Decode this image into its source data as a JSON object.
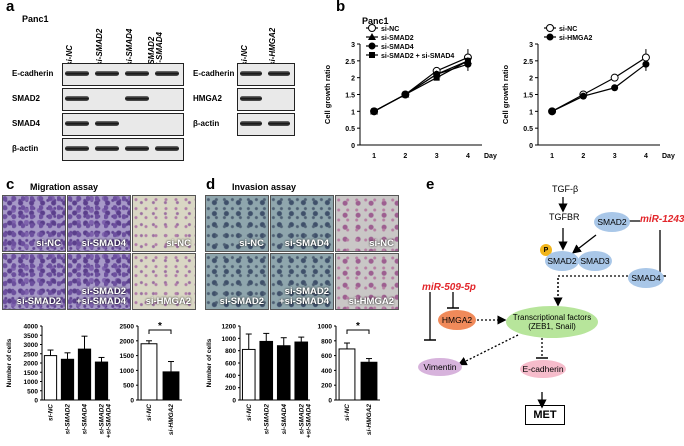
{
  "panels": {
    "a": "a",
    "b": "b",
    "c": "c",
    "d": "d",
    "e": "e"
  },
  "a": {
    "cell_line": "Panc1",
    "blot1": {
      "lanes": [
        "si-NC",
        "si-SMAD2",
        "si-SMAD4",
        "si-SMAD2\n+si-SMAD4"
      ],
      "rows": [
        "E-cadherin",
        "SMAD2",
        "SMAD4",
        "β-actin"
      ],
      "bands": [
        [
          1,
          1,
          1,
          1
        ],
        [
          1,
          0,
          1,
          0
        ],
        [
          1,
          1,
          0,
          0
        ],
        [
          1,
          1,
          1,
          1
        ]
      ]
    },
    "blot2": {
      "lanes": [
        "si-NC",
        "si-HMGA2"
      ],
      "rows": [
        "E-cadherin",
        "HMGA2",
        "β-actin"
      ],
      "bands": [
        [
          1,
          1
        ],
        [
          1,
          0
        ],
        [
          1,
          1
        ]
      ]
    }
  },
  "b": {
    "cell_line": "Panc1",
    "ylabel": "Cell growth ratio",
    "day_label": "Day",
    "ticks_y": [
      "0",
      "0.5",
      "1",
      "1.5",
      "2",
      "2.5",
      "3"
    ],
    "ticks_x": [
      "1",
      "2",
      "3",
      "4"
    ]
  },
  "c": {
    "title": "Migration assay"
  },
  "d": {
    "title": "Invasion assay"
  },
  "micro_labels": {
    "c": [
      "si-NC",
      "si-SMAD4",
      "si-NC",
      "si-SMAD2",
      "si-SMAD2\n+si-SMAD4",
      "si-HMGA2"
    ],
    "d": [
      "si-NC",
      "si-SMAD4",
      "si-NC",
      "si-SMAD2",
      "si-SMAD2\n+si-SMAD4",
      "si-HMGA2"
    ]
  },
  "chart_data": [
    {
      "type": "line",
      "title": "Panc1",
      "xlabel": "Day",
      "ylabel": "Cell growth ratio",
      "x": [
        1,
        2,
        3,
        4
      ],
      "ylim": [
        0,
        3
      ],
      "series": [
        {
          "name": "si-NC",
          "values": [
            1.0,
            1.5,
            2.2,
            2.6
          ],
          "marker": "open-circle"
        },
        {
          "name": "si-SMAD2",
          "values": [
            1.0,
            1.5,
            2.1,
            2.5
          ],
          "marker": "triangle"
        },
        {
          "name": "si-SMAD4",
          "values": [
            1.0,
            1.5,
            2.1,
            2.4
          ],
          "marker": "circle"
        },
        {
          "name": "si-SMAD2 + si-SMAD4",
          "values": [
            1.0,
            1.5,
            2.0,
            2.5
          ],
          "marker": "square"
        }
      ]
    },
    {
      "type": "line",
      "xlabel": "Day",
      "ylabel": "Cell growth ratio",
      "x": [
        1,
        2,
        3,
        4
      ],
      "ylim": [
        0,
        3
      ],
      "series": [
        {
          "name": "si-NC",
          "values": [
            1.0,
            1.5,
            2.0,
            2.6
          ],
          "marker": "open-circle"
        },
        {
          "name": "si-HMGA2",
          "values": [
            1.0,
            1.45,
            1.7,
            2.4
          ],
          "marker": "circle"
        }
      ]
    },
    {
      "type": "bar",
      "ylabel": "Number of cells",
      "categories": [
        "si-NC",
        "si-SMAD2",
        "si-SMAD4",
        "si-SMAD2\n+si-SMAD4"
      ],
      "values": [
        2400,
        2200,
        2750,
        2050
      ],
      "errors": [
        300,
        350,
        700,
        250
      ],
      "ylim": [
        0,
        4000
      ],
      "yticks": [
        0,
        500,
        1000,
        1500,
        2000,
        2500,
        3000,
        3500,
        4000
      ]
    },
    {
      "type": "bar",
      "categories": [
        "si-NC",
        "si-HMGA2"
      ],
      "values": [
        1900,
        950
      ],
      "errors": [
        100,
        350
      ],
      "ylim": [
        0,
        2500
      ],
      "yticks": [
        0,
        500,
        1000,
        1500,
        2000,
        2500
      ],
      "annotation": "*"
    },
    {
      "type": "bar",
      "ylabel": "Number of cells",
      "categories": [
        "si-NC",
        "si-SMAD2",
        "si-SMAD4",
        "si-SMAD2\n+si-SMAD4"
      ],
      "values": [
        820,
        950,
        880,
        940
      ],
      "errors": [
        250,
        130,
        130,
        80
      ],
      "ylim": [
        0,
        1200
      ],
      "yticks": [
        0,
        200,
        400,
        600,
        800,
        1000,
        1200
      ]
    },
    {
      "type": "bar",
      "categories": [
        "si-NC",
        "si-HMGA2"
      ],
      "values": [
        690,
        510
      ],
      "errors": [
        80,
        50
      ],
      "ylim": [
        0,
        1000
      ],
      "yticks": [
        0,
        200,
        400,
        600,
        800,
        1000
      ],
      "annotation": "*"
    }
  ],
  "e": {
    "tgfb": "TGF-β",
    "tgfbr": "TGFBR",
    "smad2": "SMAD2",
    "mir1243": "miR-1243",
    "mir509": "miR-509-5p",
    "p": "P",
    "smad2c": "SMAD2",
    "smad3": "SMAD3",
    "smad4": "SMAD4",
    "hmga2": "HMGA2",
    "tf": "Transcriptional factors\n(ZEB1, Snail)",
    "vimentin": "Vimentin",
    "ecad": "E-cadherin",
    "met": "MET",
    "colors": {
      "blue": "#a9c7e8",
      "red": "#e2262b",
      "green": "#b7e59b",
      "orange": "#f08a5a",
      "purple": "#d7b3dc",
      "pink": "#f6bccb",
      "yellow": "#f1b51c"
    }
  }
}
